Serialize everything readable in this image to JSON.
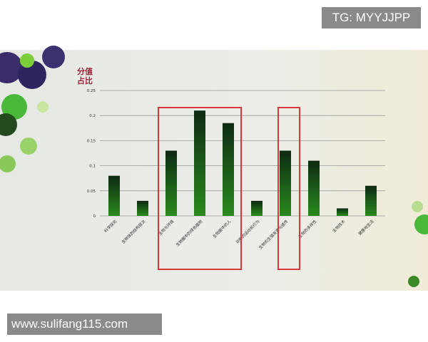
{
  "watermarks": {
    "top": "TG: MYYJJPP",
    "bottom": "www.sulifang115.com"
  },
  "chart_data": {
    "type": "bar",
    "title": "",
    "ylabel": "分值占比",
    "ylabel_lines": [
      "分值",
      "占比"
    ],
    "xlabel": "",
    "ylim": [
      0,
      0.25
    ],
    "yticks": [
      "0",
      "0.05",
      "0.1",
      "0.15",
      "0.2",
      "0.25"
    ],
    "grid": true,
    "categories": [
      "科学探究",
      "生物体的结构层次",
      "生物与环境",
      "生物圈中的绿色植物",
      "生物圈中的人",
      "动物的运动和行为",
      "生物的生殖发育与遗传",
      "生物的多样性",
      "生物技术",
      "健康地生活"
    ],
    "values": [
      0.08,
      0.03,
      0.13,
      0.21,
      0.185,
      0.03,
      0.13,
      0.11,
      0.015,
      0.06
    ],
    "highlight_groups": [
      [
        2,
        4
      ],
      [
        6,
        6
      ]
    ],
    "colors": {
      "bar_top": "#0d2a12",
      "bar_bottom": "#2a8a1e",
      "highlight": "#d8383c",
      "ylabel": "#a0203a",
      "grid": "#9a9a9a"
    }
  }
}
